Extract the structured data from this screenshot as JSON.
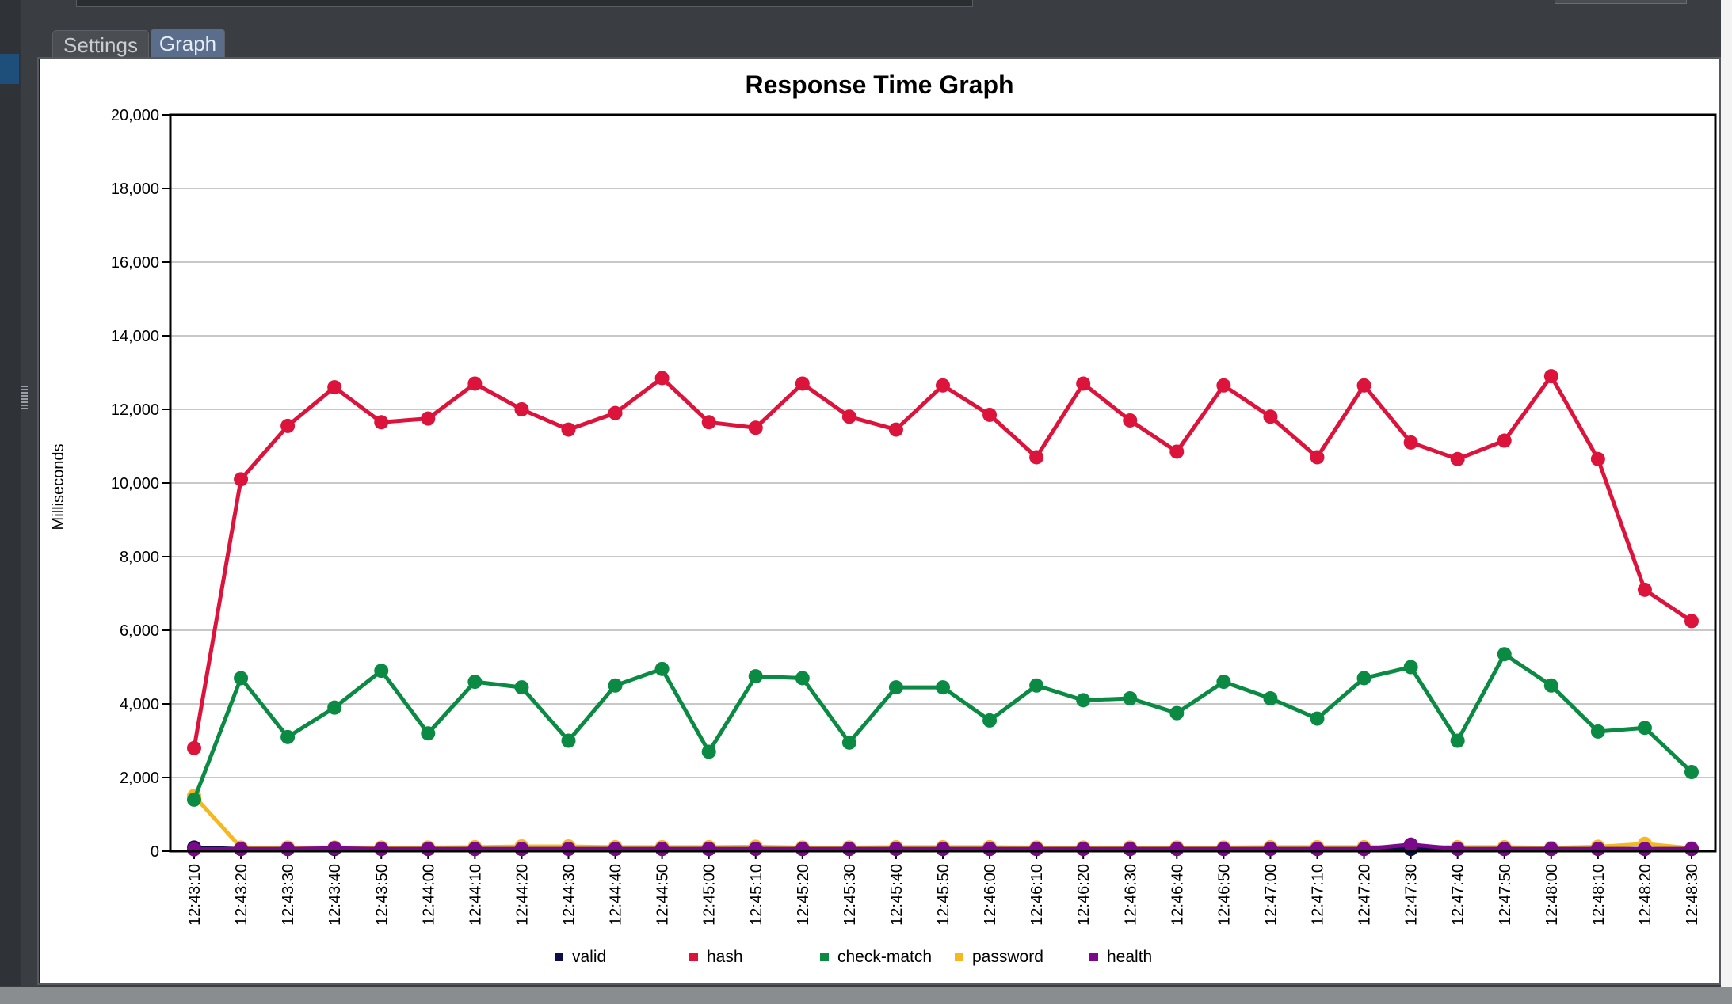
{
  "tabs": [
    {
      "label": "Settings"
    },
    {
      "label": "Graph"
    }
  ],
  "chart_data": {
    "type": "line",
    "title": "Response Time Graph",
    "xlabel": "",
    "ylabel": "Milliseconds",
    "ylim": [
      0,
      20000
    ],
    "yticks": [
      "0",
      "2,000",
      "4,000",
      "6,000",
      "8,000",
      "10,000",
      "12,000",
      "14,000",
      "16,000",
      "18,000",
      "20,000"
    ],
    "grid": true,
    "legend": "bottom",
    "x": [
      "12:43:10",
      "12:43:20",
      "12:43:30",
      "12:43:40",
      "12:43:50",
      "12:44:00",
      "12:44:10",
      "12:44:20",
      "12:44:30",
      "12:44:40",
      "12:44:50",
      "12:45:00",
      "12:45:10",
      "12:45:20",
      "12:45:30",
      "12:45:40",
      "12:45:50",
      "12:46:00",
      "12:46:10",
      "12:46:20",
      "12:46:30",
      "12:46:40",
      "12:46:50",
      "12:47:00",
      "12:47:10",
      "12:47:20",
      "12:47:30",
      "12:47:40",
      "12:47:50",
      "12:48:00",
      "12:48:10",
      "12:48:20",
      "12:48:30"
    ],
    "series": [
      {
        "name": "valid",
        "color": "#0d0d4a",
        "values": [
          100,
          60,
          60,
          60,
          60,
          60,
          60,
          60,
          60,
          60,
          60,
          60,
          60,
          60,
          60,
          60,
          60,
          60,
          60,
          60,
          60,
          60,
          60,
          60,
          60,
          60,
          60,
          60,
          60,
          60,
          60,
          60,
          60
        ]
      },
      {
        "name": "hash",
        "color": "#dc143c",
        "values": [
          2800,
          10100,
          11550,
          12600,
          11650,
          11750,
          12700,
          12000,
          11450,
          11900,
          12850,
          11650,
          11500,
          12700,
          11800,
          11450,
          12650,
          11850,
          10700,
          12700,
          11700,
          10850,
          12650,
          11800,
          10700,
          12650,
          11100,
          10650,
          11150,
          12900,
          10650,
          7100,
          6250
        ]
      },
      {
        "name": "check-match",
        "color": "#0a8a43",
        "values": [
          1400,
          4700,
          3100,
          3900,
          4900,
          3200,
          4600,
          4450,
          3000,
          4500,
          4950,
          2700,
          4750,
          4700,
          2950,
          4450,
          4450,
          3550,
          4500,
          4100,
          4150,
          3750,
          4600,
          4150,
          3600,
          4700,
          5000,
          3000,
          5350,
          4500,
          3250,
          3350,
          2150
        ]
      },
      {
        "name": "password",
        "color": "#f6b821",
        "values": [
          1500,
          100,
          100,
          100,
          100,
          100,
          110,
          130,
          130,
          110,
          110,
          110,
          120,
          100,
          100,
          110,
          110,
          110,
          100,
          100,
          100,
          100,
          100,
          110,
          110,
          110,
          110,
          110,
          110,
          90,
          120,
          200,
          80
        ]
      },
      {
        "name": "health",
        "color": "#7b0a8a",
        "values": [
          50,
          60,
          60,
          80,
          60,
          60,
          60,
          60,
          60,
          60,
          60,
          60,
          60,
          60,
          60,
          60,
          60,
          60,
          60,
          60,
          60,
          60,
          60,
          60,
          60,
          60,
          180,
          60,
          60,
          60,
          60,
          60,
          60
        ]
      }
    ]
  }
}
